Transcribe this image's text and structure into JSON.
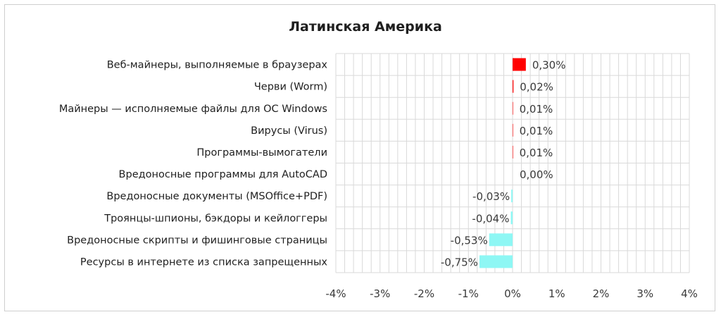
{
  "chart_data": {
    "type": "bar",
    "orientation": "horizontal",
    "title": "Латинская Америка",
    "categories": [
      "Веб-майнеры, выполняемые в браузерах",
      "Черви (Worm)",
      "Майнеры — исполняемые файлы для ОС Windows",
      "Вирусы (Virus)",
      "Программы-вымогатели",
      "Вредоносные программы для AutoCAD",
      "Вредоносные документы (MSOffice+PDF)",
      "Троянцы-шпионы, бэкдоры и кейлоггеры",
      "Вредоносные скрипты и фишинговые страницы",
      "Ресурсы в интернете из списка запрещенных"
    ],
    "values": [
      0.3,
      0.02,
      0.01,
      0.01,
      0.01,
      0.0,
      -0.03,
      -0.04,
      -0.53,
      -0.75
    ],
    "data_labels": [
      "0,30%",
      "0,02%",
      "0,01%",
      "0,01%",
      "0,01%",
      "0,00%",
      "-0,03%",
      "-0,04%",
      "-0,53%",
      "-0,75%"
    ],
    "xlim": [
      -4,
      4
    ],
    "xticks": [
      -4,
      -3,
      -2,
      -1,
      0,
      1,
      2,
      3,
      4
    ],
    "xtick_labels": [
      "-4%",
      "-3%",
      "-2%",
      "-1%",
      "0%",
      "1%",
      "2%",
      "3%",
      "4%"
    ],
    "grid": true,
    "colors": {
      "positive": "#ff0000",
      "negative": "#8ef7f4",
      "grid": "#d9d9d9"
    }
  }
}
